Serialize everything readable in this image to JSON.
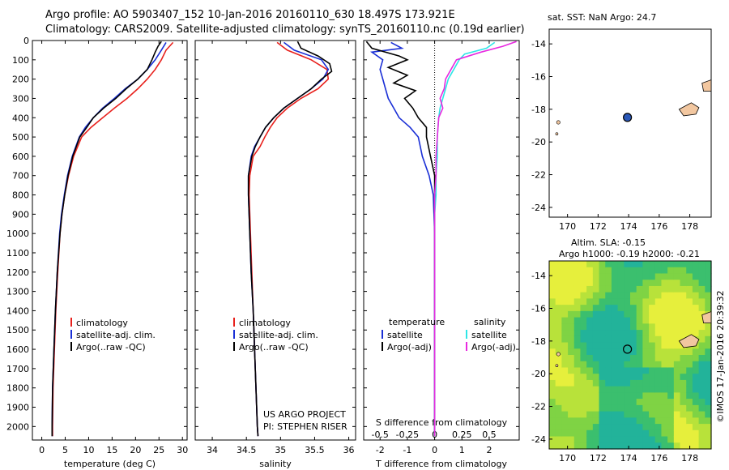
{
  "header": {
    "line1": "Argo profile: AO 5903407_152 10-Jan-2016 20160110_630 18.497S 173.921E",
    "line2": "Climatology: CARS2009. Satellite-adjusted climatology: synTS_20160110.nc (0.19d earlier)"
  },
  "colors": {
    "climatology": "#e8201c",
    "satellite": "#1a2fd6",
    "argo": "#000000",
    "sal_satellite": "#2ee6e6",
    "sal_argo": "#e829e0",
    "land": "#f2c7a0",
    "dot": "#2a58b8"
  },
  "depth_axis": {
    "ticks": [
      0,
      100,
      200,
      300,
      400,
      500,
      600,
      700,
      800,
      900,
      1000,
      1100,
      1200,
      1300,
      1400,
      1500,
      1600,
      1700,
      1800,
      1900,
      2000
    ],
    "range": [
      0,
      2070
    ]
  },
  "chart_data": [
    {
      "type": "line",
      "id": "temperature",
      "xlabel": "temperature (deg C)",
      "xlim": [
        -2,
        31
      ],
      "xticks": [
        0,
        5,
        10,
        15,
        20,
        25,
        30
      ],
      "legend": [
        "climatology",
        "satellite-adj. clim.",
        "Argo(..raw -QC)"
      ],
      "series": [
        {
          "name": "climatology",
          "depth": [
            10,
            50,
            100,
            150,
            200,
            250,
            300,
            350,
            400,
            450,
            500,
            600,
            700,
            800,
            900,
            1000,
            1200,
            1400,
            1600,
            1800,
            2000,
            2050
          ],
          "values": [
            28,
            26.5,
            25.5,
            24.2,
            22.5,
            20.5,
            18.2,
            15.5,
            13,
            10.5,
            8.5,
            6.8,
            5.7,
            4.9,
            4.3,
            3.9,
            3.4,
            3.0,
            2.7,
            2.4,
            2.3,
            2.3
          ]
        },
        {
          "name": "satellite-adj. clim.",
          "depth": [
            10,
            50,
            100,
            150,
            200,
            250,
            300,
            350,
            400,
            450,
            500,
            600,
            700,
            800,
            900,
            1000,
            1200,
            1400,
            1600,
            1800,
            2000,
            2050
          ],
          "values": [
            26.5,
            25.5,
            24.2,
            22.5,
            20.5,
            17.8,
            15.5,
            13,
            11,
            9.3,
            8,
            6.5,
            5.5,
            4.8,
            4.2,
            3.8,
            3.3,
            2.9,
            2.6,
            2.3,
            2.2,
            2.2
          ]
        },
        {
          "name": "Argo(..raw -QC)",
          "depth": [
            5,
            30,
            60,
            100,
            150,
            200,
            250,
            300,
            350,
            400,
            450,
            500,
            600,
            700,
            800,
            900,
            1000,
            1200,
            1400,
            1600,
            1800,
            2000,
            2050
          ],
          "values": [
            25.5,
            24.8,
            24.2,
            23.5,
            22.5,
            20.5,
            18,
            15.8,
            13.2,
            11,
            9.6,
            8.1,
            6.6,
            5.6,
            4.9,
            4.3,
            3.9,
            3.3,
            2.9,
            2.6,
            2.3,
            2.2,
            2.2
          ]
        }
      ]
    },
    {
      "type": "line",
      "id": "salinity",
      "xlabel": "salinity",
      "xlim": [
        33.75,
        36.1
      ],
      "xticks": [
        34,
        34.5,
        35,
        35.5,
        36
      ],
      "legend": [
        "climatology",
        "satellite-adj. clim.",
        "Argo(..raw -QC)"
      ],
      "annotation": [
        "US ARGO PROJECT",
        "PI: STEPHEN RISER"
      ],
      "series": [
        {
          "name": "climatology",
          "depth": [
            10,
            50,
            100,
            150,
            200,
            250,
            300,
            350,
            400,
            450,
            500,
            550,
            600,
            700,
            800,
            1000,
            1200,
            1400,
            1600,
            1800,
            2000,
            2050
          ],
          "values": [
            34.95,
            35.1,
            35.45,
            35.68,
            35.7,
            35.55,
            35.3,
            35.1,
            34.95,
            34.85,
            34.77,
            34.7,
            34.6,
            34.55,
            34.54,
            34.56,
            34.58,
            34.6,
            34.62,
            34.64,
            34.66,
            34.67
          ]
        },
        {
          "name": "satellite-adj. clim.",
          "depth": [
            10,
            50,
            100,
            150,
            200,
            250,
            300,
            350,
            400,
            450,
            500,
            550,
            600,
            700,
            800,
            1000,
            1200,
            1400,
            1600,
            1800,
            2000,
            2050
          ],
          "values": [
            35.05,
            35.2,
            35.6,
            35.7,
            35.62,
            35.45,
            35.25,
            35.05,
            34.9,
            34.78,
            34.7,
            34.62,
            34.57,
            34.53,
            34.53,
            34.55,
            34.57,
            34.6,
            34.62,
            34.64,
            34.66,
            34.67
          ]
        },
        {
          "name": "Argo(..raw -QC)",
          "depth": [
            5,
            40,
            80,
            120,
            160,
            200,
            250,
            300,
            350,
            400,
            450,
            500,
            550,
            600,
            700,
            800,
            1000,
            1200,
            1400,
            1600,
            1800,
            2000,
            2050
          ],
          "values": [
            35.25,
            35.3,
            35.55,
            35.72,
            35.75,
            35.6,
            35.45,
            35.25,
            35.05,
            34.9,
            34.78,
            34.7,
            34.63,
            34.58,
            34.53,
            34.53,
            34.55,
            34.57,
            34.6,
            34.62,
            34.64,
            34.66,
            34.67
          ]
        }
      ]
    },
    {
      "type": "line",
      "id": "differences",
      "xlabel": "T difference from climatology",
      "xlabel_top": "S difference from climatology",
      "xlim": [
        -2.6,
        3.1
      ],
      "xticks_T": [
        -2,
        -1,
        0,
        1,
        2
      ],
      "xticks_S": [
        "-0.5",
        "-0.25",
        "0",
        "0.25",
        "0.5"
      ],
      "xticks_S_pos": [
        -2,
        -1,
        0,
        1,
        2
      ],
      "legend_temperature_title": "temperature",
      "legend_salinity_title": "salinity",
      "legend": [
        "satellite",
        "Argo(-adj)",
        "satellite",
        "Argo(-adj)"
      ],
      "series": [
        {
          "name": "temperature satellite",
          "depth": [
            10,
            40,
            60,
            100,
            150,
            200,
            250,
            300,
            350,
            400,
            450,
            500,
            600,
            700,
            800,
            1000,
            1200,
            1600,
            2000,
            2050
          ],
          "values": [
            -1.6,
            -1.2,
            -2.3,
            -1.9,
            -2.0,
            -1.9,
            -1.8,
            -1.7,
            -1.5,
            -1.3,
            -0.9,
            -0.6,
            -0.45,
            -0.2,
            -0.05,
            0,
            0,
            0,
            0,
            0
          ]
        },
        {
          "name": "temperature Argo(-adj)",
          "depth": [
            5,
            40,
            80,
            100,
            140,
            180,
            220,
            260,
            300,
            350,
            400,
            450,
            500,
            600,
            700,
            800,
            1000,
            1200,
            1600,
            2000,
            2050
          ],
          "values": [
            -2.5,
            -2.3,
            -1.3,
            -1.0,
            -1.7,
            -1.0,
            -1.5,
            -0.7,
            -1.1,
            -0.8,
            -0.6,
            -0.3,
            -0.3,
            -0.15,
            0,
            0,
            0,
            0,
            0,
            0,
            0
          ]
        },
        {
          "name": "salinity satellite",
          "depth": [
            10,
            40,
            70,
            100,
            150,
            200,
            250,
            300,
            350,
            400,
            500,
            600,
            700,
            800,
            900,
            1000,
            1200,
            1600,
            2000,
            2050
          ],
          "values": [
            2.2,
            1.9,
            1.1,
            0.9,
            0.7,
            0.5,
            0.4,
            0.3,
            0.2,
            0.15,
            0.1,
            0.1,
            0.05,
            0.05,
            0,
            0,
            0,
            0,
            0,
            0
          ]
        },
        {
          "name": "salinity Argo(-adj)",
          "depth": [
            5,
            30,
            60,
            100,
            150,
            200,
            250,
            300,
            350,
            400,
            500,
            600,
            700,
            800,
            900,
            1000,
            1200,
            1600,
            2000,
            2050
          ],
          "values": [
            3.0,
            2.5,
            1.7,
            0.8,
            0.6,
            0.4,
            0.35,
            0.2,
            0.3,
            0.15,
            0.1,
            0.05,
            0.05,
            0,
            0,
            0,
            0,
            0,
            0,
            0
          ]
        }
      ]
    }
  ],
  "maps": {
    "top": {
      "title": "sat. SST: NaN Argo: 24.7",
      "xticks": [
        170,
        172,
        174,
        176,
        178
      ],
      "yticks": [
        -14,
        -16,
        -18,
        -20,
        -22,
        -24
      ]
    },
    "bottom": {
      "title1": "Altim. SLA: -0.15",
      "title2": "Argo h1000: -0.19 h2000: -0.21",
      "xticks": [
        170,
        172,
        174,
        176,
        178
      ],
      "yticks": [
        -14,
        -16,
        -18,
        -20,
        -22,
        -24
      ]
    },
    "credit": "©IMOS 17-Jan-2016 20:39:32"
  }
}
